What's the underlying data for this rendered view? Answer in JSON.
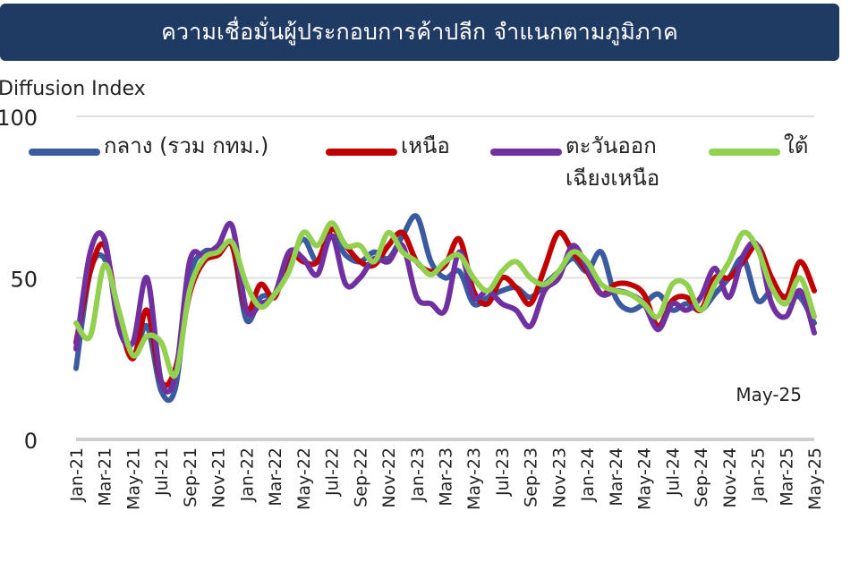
{
  "header": {
    "title": "ความเชื่อมั่นผู้ประกอบการค้าปลีก จำแนกตามภูมิภาค"
  },
  "chart_data": {
    "type": "line",
    "title": "ความเชื่อมั่นผู้ประกอบการค้าปลีก จำแนกตามภูมิภาค",
    "ylabel": "Diffusion Index",
    "xlabel": "",
    "ylim": [
      0,
      100
    ],
    "yticks": [
      0,
      50,
      100
    ],
    "grid": true,
    "legend_position": "top",
    "annotation": "May-25",
    "x": [
      "Jan-21",
      "Feb-21",
      "Mar-21",
      "Apr-21",
      "May-21",
      "Jun-21",
      "Jul-21",
      "Aug-21",
      "Sep-21",
      "Oct-21",
      "Nov-21",
      "Dec-21",
      "Jan-22",
      "Feb-22",
      "Mar-22",
      "Apr-22",
      "May-22",
      "Jun-22",
      "Jul-22",
      "Aug-22",
      "Sep-22",
      "Oct-22",
      "Nov-22",
      "Dec-22",
      "Jan-23",
      "Feb-23",
      "Mar-23",
      "Apr-23",
      "May-23",
      "Jun-23",
      "Jul-23",
      "Aug-23",
      "Sep-23",
      "Oct-23",
      "Nov-23",
      "Dec-23",
      "Jan-24",
      "Feb-24",
      "Mar-24",
      "Apr-24",
      "May-24",
      "Jun-24",
      "Jul-24",
      "Aug-24",
      "Sep-24",
      "Oct-24",
      "Nov-24",
      "Dec-24",
      "Jan-25",
      "Feb-25",
      "Mar-25",
      "Apr-25",
      "May-25"
    ],
    "xtick_labels": [
      "Jan-21",
      "Mar-21",
      "May-21",
      "Jul-21",
      "Sep-21",
      "Nov-21",
      "Jan-22",
      "Mar-22",
      "May-22",
      "Jul-22",
      "Sep-22",
      "Nov-22",
      "Jan-23",
      "Mar-23",
      "May-23",
      "Jul-23",
      "Sep-23",
      "Nov-23",
      "Jan-24",
      "Mar-24",
      "May-24",
      "Jul-24",
      "Sep-24",
      "Nov-24",
      "Jan-25",
      "Mar-25",
      "May-25"
    ],
    "series": [
      {
        "name": "กลาง (รวม กทม.)",
        "color": "#3a5ba0",
        "values": [
          22,
          52,
          56,
          40,
          26,
          35,
          15,
          16,
          50,
          58,
          58,
          60,
          37,
          44,
          45,
          54,
          62,
          55,
          63,
          57,
          55,
          58,
          56,
          63,
          69,
          55,
          50,
          52,
          42,
          44,
          46,
          47,
          44,
          48,
          52,
          56,
          52,
          58,
          44,
          40,
          42,
          45,
          40,
          42,
          40,
          45,
          50,
          56,
          43,
          46,
          44,
          44,
          36
        ]
      },
      {
        "name": "เหนือ",
        "color": "#c00000",
        "values": [
          30,
          52,
          60,
          38,
          25,
          40,
          18,
          22,
          45,
          55,
          57,
          60,
          40,
          48,
          44,
          57,
          55,
          55,
          65,
          60,
          55,
          54,
          60,
          64,
          55,
          52,
          54,
          62,
          46,
          42,
          50,
          47,
          42,
          53,
          64,
          58,
          52,
          45,
          48,
          48,
          45,
          35,
          43,
          44,
          40,
          50,
          50,
          55,
          60,
          50,
          44,
          55,
          46
        ]
      },
      {
        "name": "ตะวันออกเฉียงเหนือ",
        "color": "#7030a0",
        "values": [
          28,
          58,
          62,
          35,
          30,
          50,
          18,
          20,
          55,
          57,
          60,
          66,
          40,
          42,
          45,
          58,
          56,
          51,
          63,
          48,
          50,
          56,
          55,
          60,
          44,
          42,
          40,
          58,
          44,
          46,
          42,
          40,
          35,
          46,
          50,
          60,
          53,
          45,
          46,
          45,
          42,
          34,
          42,
          40,
          44,
          53,
          44,
          57,
          60,
          42,
          38,
          46,
          33
        ]
      },
      {
        "name": "ใต้",
        "color": "#92d050",
        "values": [
          36,
          32,
          54,
          40,
          26,
          32,
          30,
          20,
          46,
          56,
          58,
          61,
          48,
          41,
          45,
          52,
          64,
          60,
          67,
          60,
          60,
          55,
          64,
          58,
          55,
          51,
          55,
          57,
          50,
          46,
          52,
          55,
          50,
          48,
          52,
          58,
          55,
          48,
          46,
          45,
          42,
          38,
          48,
          48,
          40,
          48,
          55,
          64,
          59,
          47,
          42,
          50,
          38
        ]
      }
    ]
  }
}
